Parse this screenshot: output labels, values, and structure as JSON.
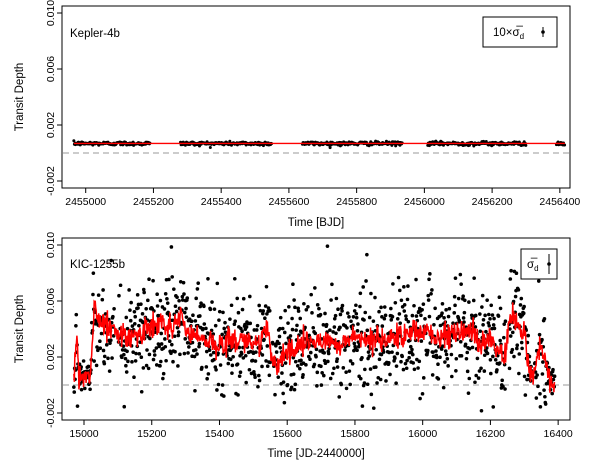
{
  "chart_data": [
    {
      "type": "scatter",
      "title": "",
      "label": "Kepler-4b",
      "legend": {
        "prefix": "10×",
        "symbol": "σ̅",
        "subscript": "d",
        "placement": "top-right"
      },
      "xlabel": "Time [BJD]",
      "ylabel": "Transit Depth",
      "xlim": [
        2454930,
        2456430
      ],
      "ylim": [
        -0.0025,
        0.0105
      ],
      "xticks": [
        2455000,
        2455200,
        2455400,
        2455600,
        2455800,
        2456000,
        2456200,
        2456400
      ],
      "xtick_labels": [
        "2455000",
        "2455200",
        "2455400",
        "2455600",
        "2455800",
        "2456000",
        "2456200",
        "2456400"
      ],
      "yticks": [
        -0.002,
        0.002,
        0.006,
        0.01
      ],
      "ytick_labels": [
        "-0.002",
        "0.002",
        "0.006",
        "0.010"
      ],
      "zero_line": 0,
      "model_value": 0.00068,
      "point_scatter": 7e-05,
      "segments": [
        [
          2454965,
          2455095
        ],
        [
          2455100,
          2455190
        ],
        [
          2455280,
          2455550
        ],
        [
          2455640,
          2455935
        ],
        [
          2456010,
          2456300
        ],
        [
          2456390,
          2456415
        ]
      ],
      "colors": {
        "points": "#000000",
        "model": "#ff0000",
        "zero_line": "#999999"
      }
    },
    {
      "type": "scatter",
      "title": "",
      "label": "KIC-1255b",
      "legend": {
        "prefix": "",
        "symbol": "σ̅",
        "subscript": "d",
        "placement": "top-right"
      },
      "xlabel": "Time [JD-2440000]",
      "ylabel": "Transit Depth",
      "xlim": [
        14935,
        16435
      ],
      "ylim": [
        -0.0025,
        0.0105
      ],
      "xticks": [
        15000,
        15200,
        15400,
        15600,
        15800,
        16000,
        16200,
        16400
      ],
      "xtick_labels": [
        "15000",
        "15200",
        "15400",
        "15600",
        "15800",
        "16000",
        "16200",
        "16400"
      ],
      "yticks": [
        -0.002,
        0.002,
        0.006,
        0.01
      ],
      "ytick_labels": [
        "-0.002",
        "0.002",
        "0.006",
        "0.010"
      ],
      "zero_line": 0,
      "point_scatter": 0.0018,
      "model_knots": {
        "x": [
          14970,
          14978,
          14985,
          14995,
          15008,
          15018,
          15025,
          15030,
          15040,
          15060,
          15080,
          15100,
          15140,
          15180,
          15220,
          15260,
          15290,
          15300,
          15330,
          15360,
          15400,
          15440,
          15480,
          15500,
          15520,
          15545,
          15552,
          15570,
          15600,
          15650,
          15700,
          15750,
          15800,
          15850,
          15900,
          15950,
          16000,
          16050,
          16100,
          16150,
          16180,
          16200,
          16220,
          16240,
          16255,
          16268,
          16280,
          16300,
          16315,
          16330,
          16345,
          16360,
          16375,
          16390
        ],
        "y": [
          0.0003,
          0.0038,
          0.001,
          0.0003,
          0.0008,
          0.0005,
          0.003,
          0.0058,
          0.0048,
          0.0042,
          0.004,
          0.0036,
          0.0035,
          0.0038,
          0.0043,
          0.004,
          0.005,
          0.0038,
          0.0035,
          0.0032,
          0.003,
          0.0033,
          0.0031,
          0.003,
          0.0032,
          0.0038,
          0.0018,
          0.0015,
          0.0025,
          0.003,
          0.0032,
          0.003,
          0.0034,
          0.0031,
          0.0035,
          0.0038,
          0.004,
          0.0033,
          0.004,
          0.0035,
          0.0029,
          0.0037,
          0.0025,
          0.0015,
          0.0045,
          0.005,
          0.0042,
          0.0036,
          0.001,
          0.0005,
          0.003,
          0.002,
          0.0005,
          0.0002
        ]
      },
      "gaps": [
        [
          15090,
          15100
        ],
        [
          15550,
          15556
        ],
        [
          16245,
          16255
        ],
        [
          16322,
          16330
        ]
      ],
      "colors": {
        "points": "#000000",
        "model": "#ff0000",
        "zero_line": "#999999"
      }
    }
  ]
}
